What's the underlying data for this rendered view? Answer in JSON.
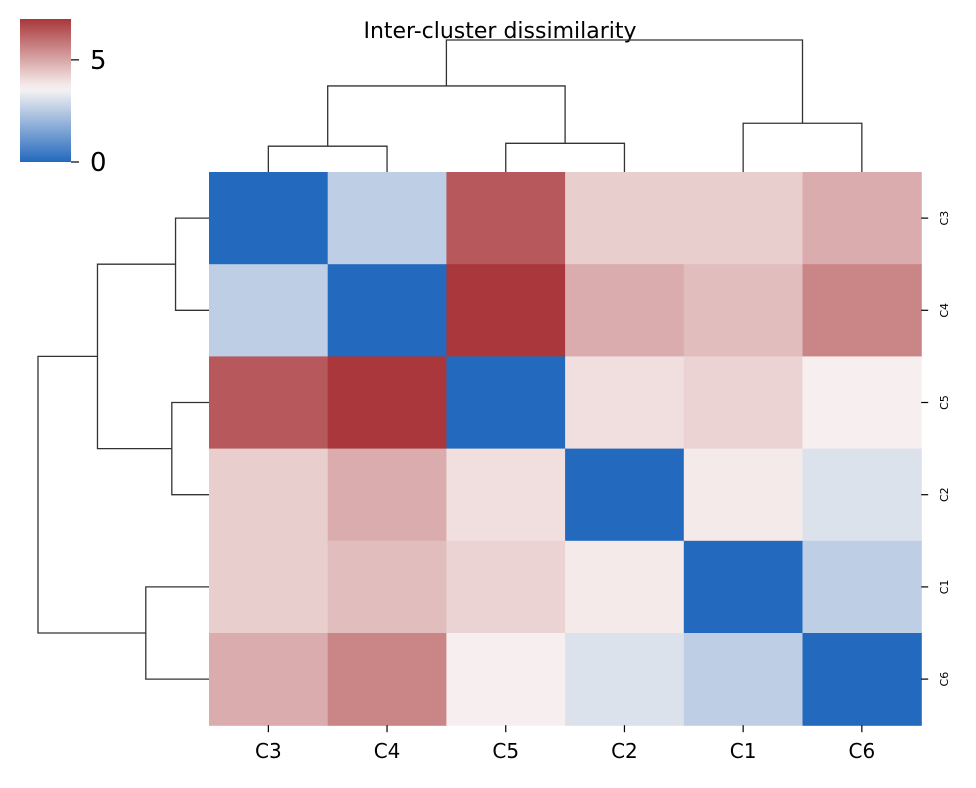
{
  "chart_data": {
    "type": "heatmap",
    "title": "Inter-cluster dissimilarity",
    "row_labels": [
      "C3",
      "C4",
      "C5",
      "C2",
      "C1",
      "C6"
    ],
    "col_labels": [
      "C3",
      "C4",
      "C5",
      "C2",
      "C1",
      "C6"
    ],
    "values": [
      [
        0.0,
        2.6,
        6.4,
        4.3,
        4.3,
        4.9
      ],
      [
        2.6,
        0.0,
        7.0,
        4.9,
        4.6,
        5.6
      ],
      [
        6.4,
        7.0,
        0.0,
        4.0,
        4.2,
        3.7
      ],
      [
        4.3,
        4.9,
        4.0,
        0.0,
        3.8,
        3.1
      ],
      [
        4.3,
        4.6,
        4.2,
        3.8,
        0.0,
        2.6
      ],
      [
        4.9,
        5.6,
        3.7,
        3.1,
        2.6,
        0.0
      ]
    ],
    "colormap": "vlag",
    "colorbar": {
      "vmin": 0,
      "vmax": 7,
      "center": 3.6,
      "ticks": [
        "0",
        "5"
      ]
    },
    "colors": {
      "low": "#2369bd",
      "mid": "#f9f5f4",
      "high": "#a9373b"
    },
    "dendrogram_linkage": [
      {
        "left": 1,
        "right": 2,
        "height": 0.09
      },
      {
        "left": 3,
        "right": 4,
        "height": 0.1
      },
      {
        "left": 5,
        "right": 6,
        "height": 0.17
      },
      {
        "left": 7,
        "right": 8,
        "height": 0.3
      },
      {
        "left": 9,
        "right": 10,
        "height": 0.46
      }
    ],
    "leaf_order_note": "leaves 1..6 correspond to C3,C4,C5,C2,C1,C6"
  }
}
